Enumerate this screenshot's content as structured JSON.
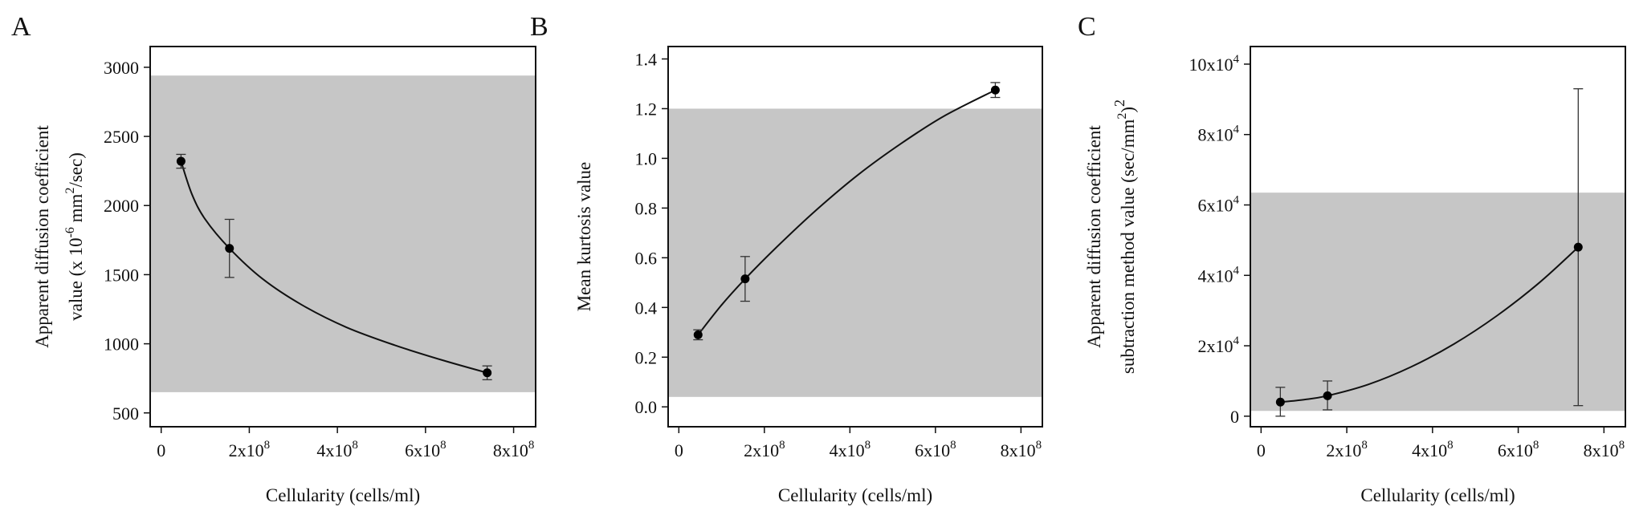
{
  "chart_data": [
    {
      "panel": "A",
      "type": "line",
      "xlabel": "Cellularity (cells/ml)",
      "ylabel_lines": [
        "Apparent diffusion coefficient",
        "value (x 10",
        "-6",
        " mm",
        "2",
        "/sec)"
      ],
      "xlim": [
        -25000000,
        850000000
      ],
      "ylim": [
        400,
        3150
      ],
      "x_ticks": [
        {
          "v": 0,
          "m": "0",
          "e": ""
        },
        {
          "v": 200000000,
          "m": "2x10",
          "e": "8"
        },
        {
          "v": 400000000,
          "m": "4x10",
          "e": "8"
        },
        {
          "v": 600000000,
          "m": "6x10",
          "e": "8"
        },
        {
          "v": 800000000,
          "m": "8x10",
          "e": "8"
        }
      ],
      "y_ticks": [
        {
          "v": 500,
          "m": "500",
          "e": ""
        },
        {
          "v": 1000,
          "m": "1000",
          "e": ""
        },
        {
          "v": 1500,
          "m": "1500",
          "e": ""
        },
        {
          "v": 2000,
          "m": "2000",
          "e": ""
        },
        {
          "v": 2500,
          "m": "2500",
          "e": ""
        },
        {
          "v": 3000,
          "m": "3000",
          "e": ""
        }
      ],
      "reference_band": [
        650,
        2940
      ],
      "points": [
        {
          "x": 45000000,
          "y": 2320,
          "err_low": 2270,
          "err_high": 2370
        },
        {
          "x": 155000000,
          "y": 1690,
          "err_low": 1480,
          "err_high": 1900
        },
        {
          "x": 740000000,
          "y": 790,
          "err_low": 740,
          "err_high": 840
        }
      ],
      "fit": [
        [
          45000000,
          2320
        ],
        [
          70000000,
          2080
        ],
        [
          100000000,
          1900
        ],
        [
          155000000,
          1690
        ],
        [
          230000000,
          1470
        ],
        [
          320000000,
          1280
        ],
        [
          420000000,
          1120
        ],
        [
          530000000,
          990
        ],
        [
          640000000,
          880
        ],
        [
          740000000,
          790
        ]
      ]
    },
    {
      "panel": "B",
      "type": "line",
      "xlabel": "Cellularity (cells/ml)",
      "ylabel_lines": [
        "Mean kurtosis value"
      ],
      "xlim": [
        -25000000,
        850000000
      ],
      "ylim": [
        -0.08,
        1.45
      ],
      "x_ticks": [
        {
          "v": 0,
          "m": "0",
          "e": ""
        },
        {
          "v": 200000000,
          "m": "2x10",
          "e": "8"
        },
        {
          "v": 400000000,
          "m": "4x10",
          "e": "8"
        },
        {
          "v": 600000000,
          "m": "6x10",
          "e": "8"
        },
        {
          "v": 800000000,
          "m": "8x10",
          "e": "8"
        }
      ],
      "y_ticks": [
        {
          "v": 0.0,
          "m": "0.0",
          "e": ""
        },
        {
          "v": 0.2,
          "m": "0.2",
          "e": ""
        },
        {
          "v": 0.4,
          "m": "0.4",
          "e": ""
        },
        {
          "v": 0.6,
          "m": "0.6",
          "e": ""
        },
        {
          "v": 0.8,
          "m": "0.8",
          "e": ""
        },
        {
          "v": 1.0,
          "m": "1.0",
          "e": ""
        },
        {
          "v": 1.2,
          "m": "1.2",
          "e": ""
        },
        {
          "v": 1.4,
          "m": "1.4",
          "e": ""
        }
      ],
      "reference_band": [
        0.04,
        1.2
      ],
      "points": [
        {
          "x": 45000000,
          "y": 0.29,
          "err_low": 0.27,
          "err_high": 0.31
        },
        {
          "x": 155000000,
          "y": 0.515,
          "err_low": 0.425,
          "err_high": 0.605
        },
        {
          "x": 740000000,
          "y": 1.275,
          "err_low": 1.245,
          "err_high": 1.305
        }
      ],
      "fit": [
        [
          45000000,
          0.29
        ],
        [
          100000000,
          0.41
        ],
        [
          155000000,
          0.515
        ],
        [
          230000000,
          0.645
        ],
        [
          320000000,
          0.79
        ],
        [
          420000000,
          0.935
        ],
        [
          520000000,
          1.06
        ],
        [
          620000000,
          1.17
        ],
        [
          740000000,
          1.275
        ]
      ]
    },
    {
      "panel": "C",
      "type": "line",
      "xlabel": "Cellularity (cells/ml)",
      "ylabel_lines": [
        "Apparent diffusion coefficient",
        "subtraction method value (sec/mm",
        "2",
        ")",
        "2"
      ],
      "xlim": [
        -25000000,
        850000000
      ],
      "ylim": [
        -3000,
        105000
      ],
      "x_ticks": [
        {
          "v": 0,
          "m": "0",
          "e": ""
        },
        {
          "v": 200000000,
          "m": "2x10",
          "e": "8"
        },
        {
          "v": 400000000,
          "m": "4x10",
          "e": "8"
        },
        {
          "v": 600000000,
          "m": "6x10",
          "e": "8"
        },
        {
          "v": 800000000,
          "m": "8x10",
          "e": "8"
        }
      ],
      "y_ticks": [
        {
          "v": 0,
          "m": "0",
          "e": ""
        },
        {
          "v": 20000,
          "m": "2x10",
          "e": "4"
        },
        {
          "v": 40000,
          "m": "4x10",
          "e": "4"
        },
        {
          "v": 60000,
          "m": "6x10",
          "e": "4"
        },
        {
          "v": 80000,
          "m": "8x10",
          "e": "4"
        },
        {
          "v": 100000,
          "m": "10x10",
          "e": "4"
        }
      ],
      "reference_band": [
        1500,
        63500
      ],
      "points": [
        {
          "x": 45000000,
          "y": 4000,
          "err_low": 0,
          "err_high": 8200
        },
        {
          "x": 155000000,
          "y": 5800,
          "err_low": 1800,
          "err_high": 10000
        },
        {
          "x": 740000000,
          "y": 48000,
          "err_low": 3000,
          "err_high": 93000
        }
      ],
      "fit": [
        [
          45000000,
          4000
        ],
        [
          100000000,
          4700
        ],
        [
          155000000,
          5800
        ],
        [
          250000000,
          9000
        ],
        [
          350000000,
          14000
        ],
        [
          450000000,
          20500
        ],
        [
          550000000,
          28500
        ],
        [
          650000000,
          38000
        ],
        [
          740000000,
          48000
        ]
      ]
    }
  ]
}
